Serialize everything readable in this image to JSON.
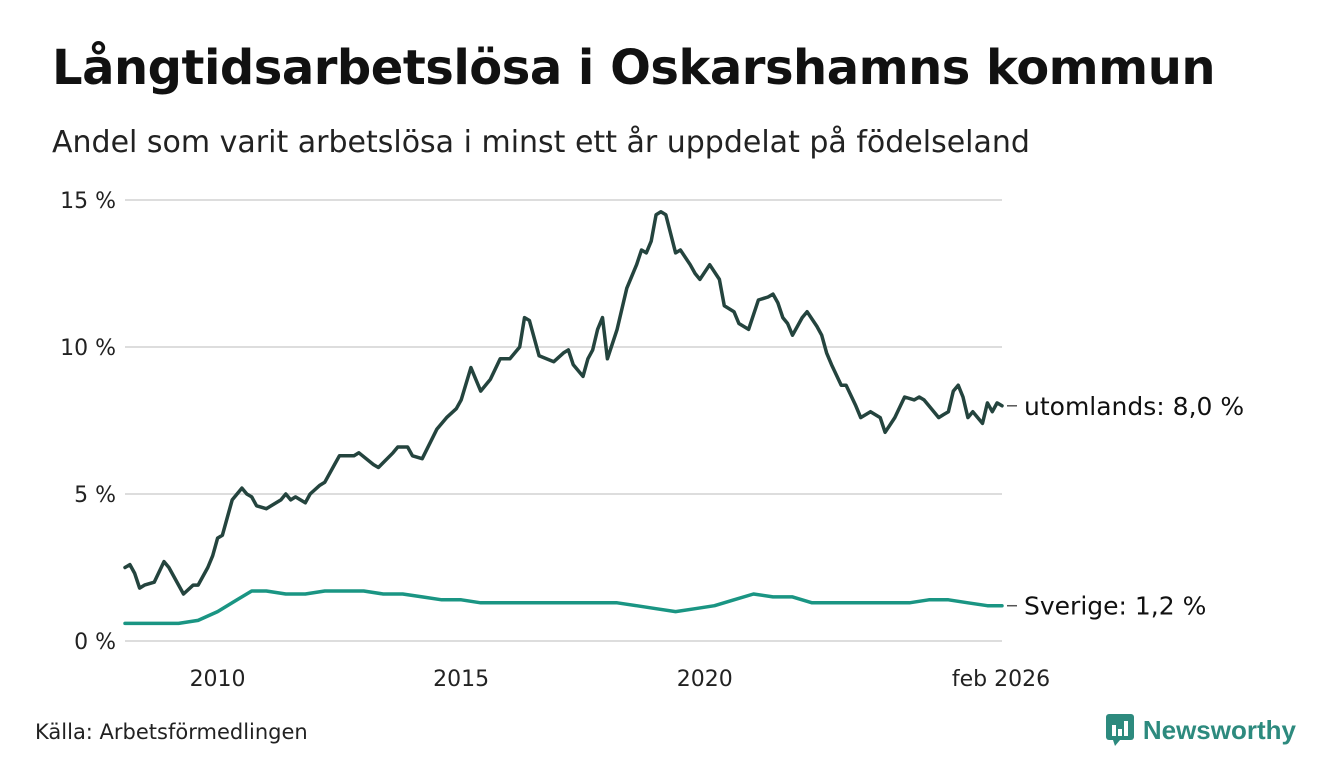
{
  "title": "Långtidsarbetslösa i Oskarshamns kommun",
  "subtitle": "Andel som varit arbetslösa i minst ett år uppdelat på födelseland",
  "source": "Källa: Arbetsförmedlingen",
  "brand": "Newsworthy",
  "colors": {
    "utomlands": "#24443e",
    "sverige": "#1a9583",
    "grid": "#dddddd"
  },
  "chart_data": {
    "type": "line",
    "title": "Långtidsarbetslösa i Oskarshamns kommun",
    "subtitle": "Andel som varit arbetslösa i minst ett år uppdelat på födelseland",
    "xlabel": "",
    "ylabel": "",
    "xlim": [
      2008.1,
      2026.1
    ],
    "ylim": [
      0,
      15
    ],
    "y_ticks": [
      {
        "value": 0,
        "label": "0 %"
      },
      {
        "value": 5,
        "label": "5 %"
      },
      {
        "value": 10,
        "label": "10 %"
      },
      {
        "value": 15,
        "label": "15 %"
      }
    ],
    "x_ticks": [
      {
        "value": 2010,
        "label": "2010"
      },
      {
        "value": 2015,
        "label": "2015"
      },
      {
        "value": 2020,
        "label": "2020"
      },
      {
        "value": 2026.08,
        "label": "feb 2026"
      }
    ],
    "grid": true,
    "series": [
      {
        "name": "utomlands",
        "end_label": "utomlands: 8,0 %",
        "color": "#24443e",
        "x": [
          2008.1,
          2008.2,
          2008.3,
          2008.4,
          2008.5,
          2008.7,
          2008.9,
          2009.0,
          2009.2,
          2009.3,
          2009.5,
          2009.6,
          2009.8,
          2009.9,
          2010.0,
          2010.1,
          2010.2,
          2010.3,
          2010.5,
          2010.6,
          2010.7,
          2010.8,
          2011.0,
          2011.1,
          2011.3,
          2011.4,
          2011.5,
          2011.6,
          2011.8,
          2011.9,
          2012.1,
          2012.2,
          2012.4,
          2012.5,
          2012.8,
          2012.9,
          2013.2,
          2013.3,
          2013.6,
          2013.7,
          2013.9,
          2014.0,
          2014.2,
          2014.5,
          2014.7,
          2014.9,
          2015.0,
          2015.2,
          2015.4,
          2015.6,
          2015.8,
          2016.0,
          2016.2,
          2016.3,
          2016.4,
          2016.6,
          2016.9,
          2017.1,
          2017.2,
          2017.3,
          2017.5,
          2017.6,
          2017.7,
          2017.8,
          2017.9,
          2018.0,
          2018.2,
          2018.4,
          2018.5,
          2018.6,
          2018.7,
          2018.8,
          2018.9,
          2019.0,
          2019.1,
          2019.2,
          2019.4,
          2019.5,
          2019.7,
          2019.8,
          2019.9,
          2020.1,
          2020.3,
          2020.4,
          2020.6,
          2020.7,
          2020.9,
          2021.1,
          2021.3,
          2021.4,
          2021.5,
          2021.6,
          2021.7,
          2021.8,
          2022.0,
          2022.1,
          2022.3,
          2022.4,
          2022.5,
          2022.6,
          2022.8,
          2022.9,
          2023.1,
          2023.2,
          2023.4,
          2023.6,
          2023.7,
          2023.9,
          2024.1,
          2024.3,
          2024.4,
          2024.5,
          2024.6,
          2024.8,
          2024.9,
          2025.0,
          2025.1,
          2025.2,
          2025.3,
          2025.4,
          2025.5,
          2025.7,
          2025.8,
          2025.9,
          2026.0,
          2026.1
        ],
        "values": [
          2.5,
          2.6,
          2.3,
          1.8,
          1.9,
          2.0,
          2.7,
          2.5,
          1.9,
          1.6,
          1.9,
          1.9,
          2.5,
          2.9,
          3.5,
          3.6,
          4.2,
          4.8,
          5.2,
          5.0,
          4.9,
          4.6,
          4.5,
          4.6,
          4.8,
          5.0,
          4.8,
          4.9,
          4.7,
          5.0,
          5.3,
          5.4,
          6.0,
          6.3,
          6.3,
          6.4,
          6.0,
          5.9,
          6.4,
          6.6,
          6.6,
          6.3,
          6.2,
          7.2,
          7.6,
          7.9,
          8.2,
          9.3,
          8.5,
          8.9,
          9.6,
          9.6,
          10.0,
          11.0,
          10.9,
          9.7,
          9.5,
          9.8,
          9.9,
          9.4,
          9.0,
          9.6,
          9.9,
          10.6,
          11.0,
          9.6,
          10.6,
          12.0,
          12.4,
          12.8,
          13.3,
          13.2,
          13.6,
          14.5,
          14.6,
          14.5,
          13.2,
          13.3,
          12.8,
          12.5,
          12.3,
          12.8,
          12.3,
          11.4,
          11.2,
          10.8,
          10.6,
          11.6,
          11.7,
          11.8,
          11.5,
          11.0,
          10.8,
          10.4,
          11.0,
          11.2,
          10.7,
          10.4,
          9.8,
          9.4,
          8.7,
          8.7,
          8.0,
          7.6,
          7.8,
          7.6,
          7.1,
          7.6,
          8.3,
          8.2,
          8.3,
          8.2,
          8.0,
          7.6,
          7.7,
          7.8,
          8.5,
          8.7,
          8.3,
          7.6,
          7.8,
          7.4,
          8.1,
          7.8,
          8.1,
          8.0
        ],
        "last_value": 8.0
      },
      {
        "name": "Sverige",
        "end_label": "Sverige: 1,2 %",
        "color": "#1a9583",
        "x": [
          2008.1,
          2008.5,
          2008.8,
          2009.2,
          2009.6,
          2010.0,
          2010.4,
          2010.7,
          2011.0,
          2011.4,
          2011.8,
          2012.2,
          2012.6,
          2013.0,
          2013.4,
          2013.8,
          2014.2,
          2014.6,
          2015.0,
          2015.4,
          2015.8,
          2016.2,
          2016.6,
          2017.0,
          2017.4,
          2017.8,
          2018.2,
          2018.6,
          2019.0,
          2019.4,
          2019.8,
          2020.2,
          2020.6,
          2021.0,
          2021.4,
          2021.8,
          2022.2,
          2022.6,
          2023.0,
          2023.4,
          2023.8,
          2024.2,
          2024.6,
          2025.0,
          2025.4,
          2025.8,
          2026.1
        ],
        "values": [
          0.6,
          0.6,
          0.6,
          0.6,
          0.7,
          1.0,
          1.4,
          1.7,
          1.7,
          1.6,
          1.6,
          1.7,
          1.7,
          1.7,
          1.6,
          1.6,
          1.5,
          1.4,
          1.4,
          1.3,
          1.3,
          1.3,
          1.3,
          1.3,
          1.3,
          1.3,
          1.3,
          1.2,
          1.1,
          1.0,
          1.1,
          1.2,
          1.4,
          1.6,
          1.5,
          1.5,
          1.3,
          1.3,
          1.3,
          1.3,
          1.3,
          1.3,
          1.4,
          1.4,
          1.3,
          1.2,
          1.2
        ],
        "last_value": 1.2
      }
    ],
    "annotations": [
      "utomlands: 8,0 %",
      "Sverige: 1,2 %"
    ]
  }
}
